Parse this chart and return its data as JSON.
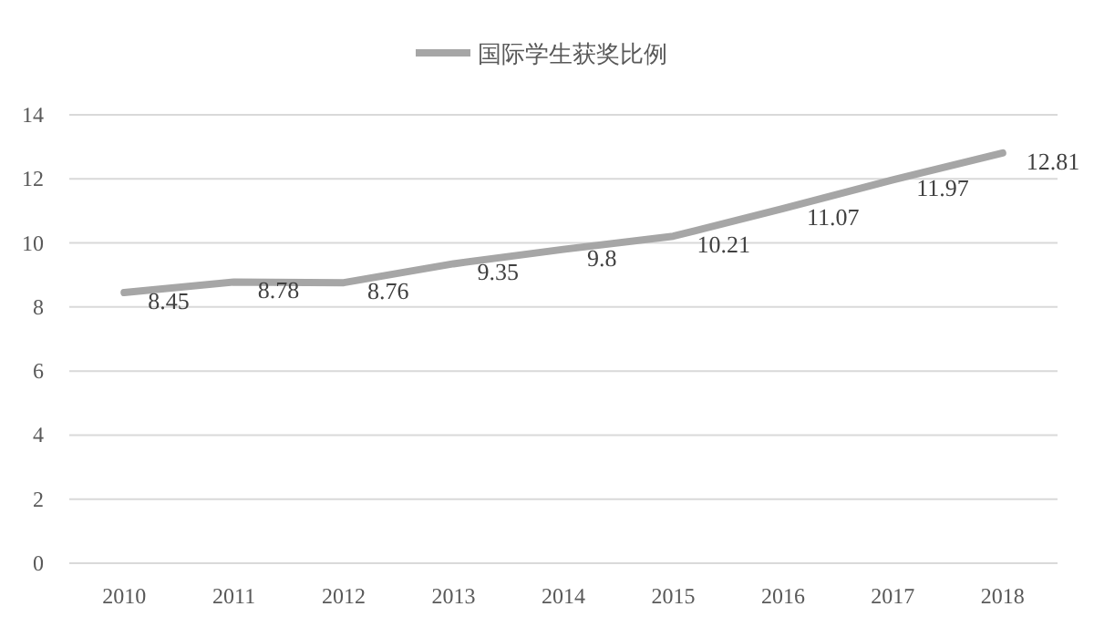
{
  "chart_data": {
    "type": "line",
    "categories": [
      "2010",
      "2011",
      "2012",
      "2013",
      "2014",
      "2015",
      "2016",
      "2017",
      "2018"
    ],
    "series": [
      {
        "name": "国际学生获奖比例",
        "color": "#a6a6a6",
        "values": [
          8.45,
          8.78,
          8.76,
          9.35,
          9.8,
          10.21,
          11.07,
          11.97,
          12.81
        ]
      }
    ],
    "ylim": [
      0,
      14
    ],
    "yticks": [
      0,
      2,
      4,
      6,
      8,
      10,
      12,
      14
    ],
    "grid": "y",
    "legend": "top",
    "data_labels": true,
    "marker": "none",
    "line_style": "solid"
  }
}
